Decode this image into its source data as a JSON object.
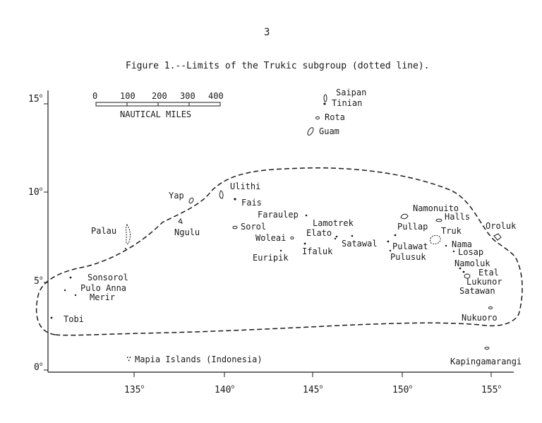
{
  "page": {
    "page_number": "3",
    "figure_title": "Figure 1.--Limits of the Trukic subgroup (dotted line)."
  },
  "scale_bar": {
    "labels": [
      "0",
      "100",
      "200",
      "300",
      "400"
    ],
    "unit": "NAUTICAL MILES"
  },
  "axes": {
    "y_ticks": [
      {
        "value": "15",
        "deg": "o"
      },
      {
        "value": "10",
        "deg": "o"
      },
      {
        "value": "5",
        "deg": "o"
      },
      {
        "value": "0",
        "deg": "o"
      }
    ],
    "x_ticks": [
      {
        "value": "135",
        "deg": "o"
      },
      {
        "value": "140",
        "deg": "o"
      },
      {
        "value": "145",
        "deg": "o"
      },
      {
        "value": "150",
        "deg": "o"
      },
      {
        "value": "155",
        "deg": "o"
      }
    ]
  },
  "places": {
    "saipan": "Saipan",
    "tinian": "Tinian",
    "rota": "Rota",
    "guam": "Guam",
    "ulithi": "Ulithi",
    "yap": "Yap",
    "fais": "Fais",
    "faraulep": "Faraulep",
    "lamotrek": "Lamotrek",
    "elato": "Elato",
    "sorol": "Sorol",
    "ngulu": "Ngulu",
    "palau": "Palau",
    "woleai": "Woleai",
    "satawal": "Satawal",
    "ifaluk": "Ifaluk",
    "euripik": "Euripik",
    "namonuito": "Namonuito",
    "halls": "Halls",
    "pullap": "Pullap",
    "truk": "Truk",
    "oroluk": "Oroluk",
    "pulawat": "Pulawat",
    "nama": "Nama",
    "pulusuk": "Pulusuk",
    "losap": "Losap",
    "namoluk": "Namoluk",
    "etal": "Etal",
    "lukunor": "Lukunor",
    "satawan": "Satawan",
    "sonsorol": "Sonsorol",
    "pulo_anna": "Pulo Anna",
    "merir": "Merir",
    "tobi": "Tobi",
    "nukuoro": "Nukuoro",
    "mapia": "Mapia Islands (Indonesia)",
    "kapingamarangi": "Kapingamarangi"
  }
}
